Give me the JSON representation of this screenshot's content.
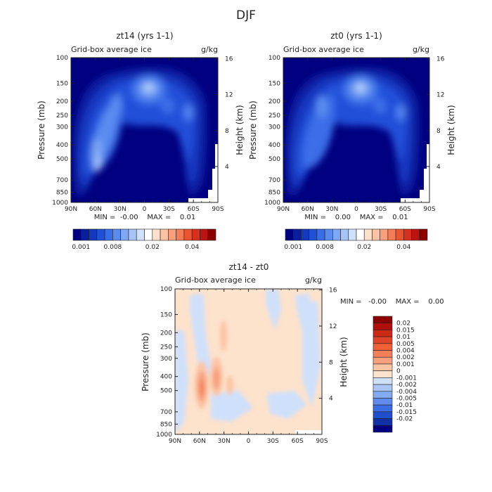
{
  "figure_title": "DJF",
  "chart_data": [
    {
      "type": "heatmap",
      "title": "zt14 (yrs 1-1)",
      "subtitle_left": "Grid-box average ice",
      "subtitle_right": "g/kg",
      "ylabel": "Pressure (mb)",
      "y2label": "Height (km)",
      "x_ticks": [
        "90N",
        "60N",
        "30N",
        "0",
        "30S",
        "60S",
        "90S"
      ],
      "y_ticks": [
        "100",
        "150",
        "200",
        "250",
        "300",
        "400",
        "500",
        "700",
        "850",
        "1000"
      ],
      "y2_ticks": [
        "16",
        "12",
        "8",
        "4"
      ],
      "ylim": [
        1000,
        100
      ],
      "stats": "MIN =  -0.00    MAX =    0.01",
      "colorbar": {
        "orientation": "horizontal",
        "labels": [
          "0.001",
          "0.008",
          "0.02",
          "0.04"
        ],
        "colors": [
          "#000080",
          "#0a1fa0",
          "#1538c0",
          "#2050d8",
          "#3a6ee8",
          "#5a8cf0",
          "#7ea8f4",
          "#a6c4f8",
          "#cfe0fb",
          "#ffffff",
          "#fde0cc",
          "#fbc2a4",
          "#f8a07c",
          "#f47c56",
          "#ea5430",
          "#d8301c",
          "#bc1410",
          "#8c0000"
        ]
      }
    },
    {
      "type": "heatmap",
      "title": "zt0 (yrs 1-1)",
      "subtitle_left": "Grid-box average ice",
      "subtitle_right": "g/kg",
      "ylabel": "Pressure (mb)",
      "y2label": "Height (km)",
      "x_ticks": [
        "90N",
        "60N",
        "30N",
        "0",
        "30S",
        "60S",
        "90S"
      ],
      "y_ticks": [
        "100",
        "150",
        "200",
        "250",
        "300",
        "400",
        "500",
        "700",
        "850",
        "1000"
      ],
      "y2_ticks": [
        "16",
        "12",
        "8",
        "4"
      ],
      "ylim": [
        1000,
        100
      ],
      "stats": "MIN =    0.00    MAX =    0.01",
      "colorbar": {
        "orientation": "horizontal",
        "labels": [
          "0.001",
          "0.008",
          "0.02",
          "0.04"
        ],
        "colors": [
          "#000080",
          "#0a1fa0",
          "#1538c0",
          "#2050d8",
          "#3a6ee8",
          "#5a8cf0",
          "#7ea8f4",
          "#a6c4f8",
          "#cfe0fb",
          "#ffffff",
          "#fde0cc",
          "#fbc2a4",
          "#f8a07c",
          "#f47c56",
          "#ea5430",
          "#d8301c",
          "#bc1410",
          "#8c0000"
        ]
      }
    },
    {
      "type": "heatmap",
      "title": "zt14 - zt0",
      "subtitle_left": "Grid-box average ice",
      "subtitle_right": "g/kg",
      "ylabel": "Pressure (mb)",
      "y2label": "Height (km)",
      "x_ticks": [
        "90N",
        "60N",
        "30N",
        "0",
        "30S",
        "60S",
        "90S"
      ],
      "y_ticks": [
        "100",
        "150",
        "200",
        "250",
        "300",
        "400",
        "500",
        "700",
        "850",
        "1000"
      ],
      "y2_ticks": [
        "16",
        "12",
        "8",
        "4"
      ],
      "ylim": [
        1000,
        100
      ],
      "stats": "MIN =   -0.00    MAX =    0.00",
      "colorbar": {
        "orientation": "vertical",
        "labels": [
          "0.02",
          "0.015",
          "0.01",
          "0.005",
          "0.004",
          "0.002",
          "0.001",
          "0",
          "-0.001",
          "-0.002",
          "-0.004",
          "-0.005",
          "-0.01",
          "-0.015",
          "-0.02"
        ],
        "colors": [
          "#8c0000",
          "#b01008",
          "#cc2a14",
          "#e04428",
          "#f06036",
          "#f4805a",
          "#f8a07e",
          "#fbc4a4",
          "#fde2cc",
          "#cfe0fb",
          "#a9c6f6",
          "#84aaf2",
          "#5d8cec",
          "#3a6ee4",
          "#1f4fcc",
          "#1030a8",
          "#000080"
        ]
      }
    }
  ]
}
